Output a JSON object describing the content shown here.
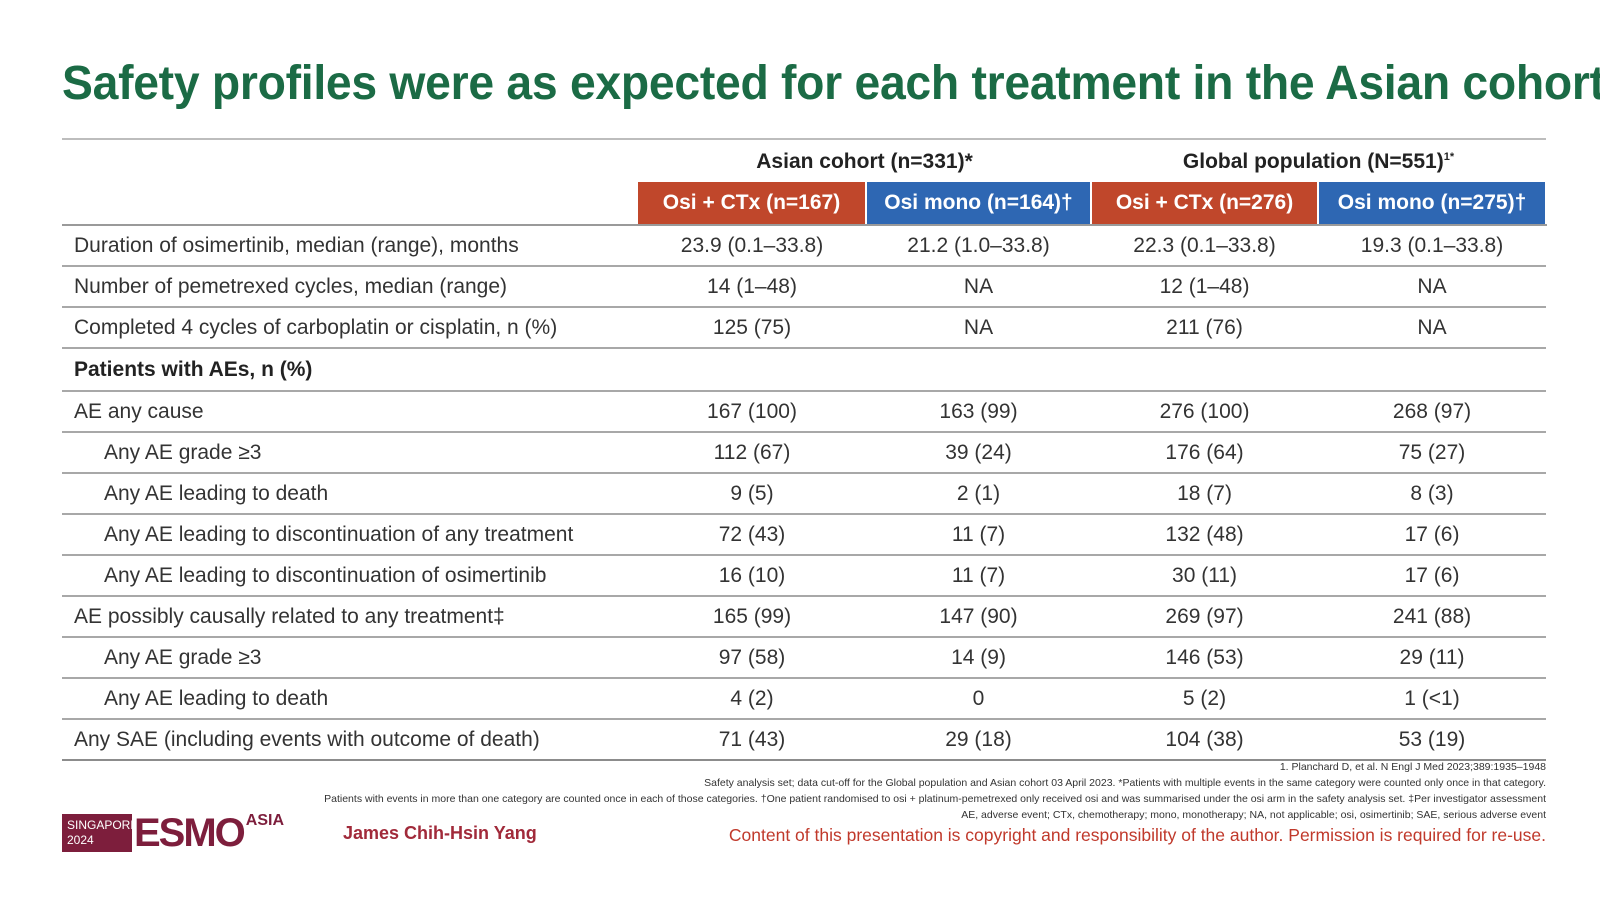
{
  "slide": {
    "title": "Safety profiles were as expected for each treatment in the Asian cohort"
  },
  "table": {
    "groups": [
      {
        "label": "Asian cohort (n=331)*",
        "sup": ""
      },
      {
        "label": "Global population (N=551)",
        "sup": "1*"
      }
    ],
    "arms": [
      {
        "label": "Osi + CTx (n=167)",
        "type": "combo"
      },
      {
        "label": "Osi mono (n=164)†",
        "type": "mono"
      },
      {
        "label": "Osi + CTx (n=276)",
        "type": "combo"
      },
      {
        "label": "Osi mono (n=275)†",
        "type": "mono"
      }
    ],
    "rows": [
      {
        "label": "Duration of osimertinib, median (range), months",
        "indent": false,
        "values": [
          "23.9 (0.1–33.8)",
          "21.2 (1.0–33.8)",
          "22.3 (0.1–33.8)",
          "19.3 (0.1–33.8)"
        ]
      },
      {
        "label": "Number of pemetrexed cycles, median (range)",
        "indent": false,
        "values": [
          "14 (1–48)",
          "NA",
          "12 (1–48)",
          "NA"
        ]
      },
      {
        "label": "Completed 4 cycles of carboplatin or cisplatin, n (%)",
        "indent": false,
        "values": [
          "125 (75)",
          "NA",
          "211 (76)",
          "NA"
        ]
      },
      {
        "label": "Patients with AEs, n (%)",
        "section": true
      },
      {
        "label": "AE any cause",
        "indent": false,
        "values": [
          "167 (100)",
          "163 (99)",
          "276 (100)",
          "268 (97)"
        ]
      },
      {
        "label": "Any AE grade ≥3",
        "indent": true,
        "values": [
          "112 (67)",
          "39 (24)",
          "176 (64)",
          "75 (27)"
        ]
      },
      {
        "label": "Any AE leading to death",
        "indent": true,
        "values": [
          "9 (5)",
          "2 (1)",
          "18 (7)",
          "8 (3)"
        ]
      },
      {
        "label": "Any AE leading to discontinuation of any treatment",
        "indent": true,
        "values": [
          "72 (43)",
          "11 (7)",
          "132 (48)",
          "17 (6)"
        ]
      },
      {
        "label": "Any AE leading to discontinuation of osimertinib",
        "indent": true,
        "values": [
          "16 (10)",
          "11 (7)",
          "30 (11)",
          "17 (6)"
        ]
      },
      {
        "label": "AE possibly causally related to any treatment‡",
        "indent": false,
        "values": [
          "165 (99)",
          "147 (90)",
          "269 (97)",
          "241 (88)"
        ]
      },
      {
        "label": "Any AE grade ≥3",
        "indent": true,
        "values": [
          "97 (58)",
          "14 (9)",
          "146 (53)",
          "29 (11)"
        ]
      },
      {
        "label": "Any AE leading to death",
        "indent": true,
        "values": [
          "4 (2)",
          "0",
          "5 (2)",
          "1 (<1)"
        ]
      },
      {
        "label": "Any SAE (including events with outcome of death)",
        "indent": false,
        "values": [
          "71 (43)",
          "29 (18)",
          "104 (38)",
          "53 (19)"
        ]
      }
    ]
  },
  "footnotes": [
    "1. Planchard D, et al. N Engl J Med 2023;389:1935–1948",
    "Safety analysis set; data cut-off for the Global population and Asian cohort 03 April 2023. *Patients with multiple events in the same category were counted only once in that category.",
    "Patients with events in more than one category are counted once in each of those categories. †One patient randomised to osi + platinum-pemetrexed only received osi and was summarised under the osi arm in the safety analysis set. ‡Per investigator assessment",
    "AE, adverse event; CTx, chemotherapy; mono, monotherapy; NA, not applicable; osi, osimertinib; SAE, serious adverse event"
  ],
  "footer": {
    "logo_city": "SINGAPORE",
    "logo_year": "2024",
    "logo_word": "ESMO",
    "logo_region": "ASIA",
    "presenter": "James Chih-Hsin Yang",
    "copyright": "Content of this presentation is copyright and responsibility of the author. Permission is required for re-use."
  },
  "colors": {
    "title": "#1b6b45",
    "combo_header": "#c0472b",
    "mono_header": "#2e67b3",
    "esmo": "#7d1e3c",
    "copyright": "#c0392b"
  }
}
